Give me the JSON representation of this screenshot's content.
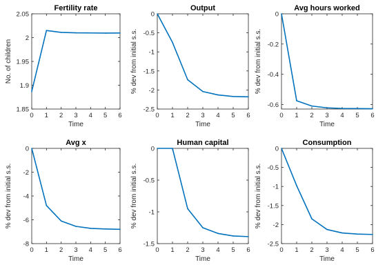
{
  "chart_data": [
    {
      "type": "line",
      "title": "Fertility rate",
      "xlabel": "Time",
      "ylabel": "No. of children",
      "x": [
        0,
        1,
        2,
        3,
        4,
        5,
        6
      ],
      "xlim": [
        0,
        6
      ],
      "ylim": [
        1.85,
        2.05
      ],
      "xticks": [
        0,
        1,
        2,
        3,
        4,
        5,
        6
      ],
      "yticks": [
        1.85,
        1.9,
        1.95,
        2,
        2.05
      ],
      "ytick_labels": [
        "1.85",
        "1.9",
        "1.95",
        "2",
        "2.05"
      ],
      "series": [
        {
          "values": [
            1.887,
            2.015,
            2.011,
            2.01,
            2.0098,
            2.0095,
            2.0097
          ],
          "color": "#0072BD"
        }
      ],
      "grid": false
    },
    {
      "type": "line",
      "title": "Output",
      "xlabel": "Time",
      "ylabel": "% dev from initial s.s.",
      "x": [
        0,
        1,
        2,
        3,
        4,
        5,
        6
      ],
      "xlim": [
        0,
        6
      ],
      "ylim": [
        -2.5,
        0
      ],
      "xticks": [
        0,
        1,
        2,
        3,
        4,
        5,
        6
      ],
      "yticks": [
        -2.5,
        -2,
        -1.5,
        -1,
        -0.5,
        0
      ],
      "ytick_labels": [
        "-2.5",
        "-2",
        "-1.5",
        "-1",
        "-0.5",
        "0"
      ],
      "series": [
        {
          "values": [
            0,
            -0.75,
            -1.73,
            -2.04,
            -2.13,
            -2.17,
            -2.18
          ],
          "color": "#0072BD"
        }
      ],
      "grid": false
    },
    {
      "type": "line",
      "title": "Avg hours worked",
      "xlabel": "Time",
      "ylabel": "% dev from initial s.s.",
      "x": [
        0,
        1,
        2,
        3,
        4,
        5,
        6
      ],
      "xlim": [
        0,
        6
      ],
      "ylim": [
        -0.63,
        0
      ],
      "xticks": [
        0,
        1,
        2,
        3,
        4,
        5,
        6
      ],
      "yticks": [
        -0.6,
        -0.4,
        -0.2,
        0
      ],
      "ytick_labels": [
        "-0.6",
        "-0.4",
        "-0.2",
        "0"
      ],
      "series": [
        {
          "values": [
            0,
            -0.575,
            -0.61,
            -0.622,
            -0.626,
            -0.627,
            -0.628
          ],
          "color": "#0072BD"
        }
      ],
      "grid": false
    },
    {
      "type": "line",
      "title": "Avg x",
      "xlabel": "Time",
      "ylabel": "% dev from initial s.s.",
      "x": [
        0,
        1,
        2,
        3,
        4,
        5,
        6
      ],
      "xlim": [
        0,
        6
      ],
      "ylim": [
        -8,
        0
      ],
      "xticks": [
        0,
        1,
        2,
        3,
        4,
        5,
        6
      ],
      "yticks": [
        -8,
        -6,
        -4,
        -2,
        0
      ],
      "ytick_labels": [
        "-8",
        "-6",
        "-4",
        "-2",
        "0"
      ],
      "series": [
        {
          "values": [
            0,
            -4.8,
            -6.1,
            -6.55,
            -6.72,
            -6.77,
            -6.8
          ],
          "color": "#0072BD"
        }
      ],
      "grid": false
    },
    {
      "type": "line",
      "title": "Human capital",
      "xlabel": "Time",
      "ylabel": "% dev from initial s.s.",
      "x": [
        0,
        1,
        2,
        3,
        4,
        5,
        6
      ],
      "xlim": [
        0,
        6
      ],
      "ylim": [
        -1.5,
        0
      ],
      "xticks": [
        0,
        1,
        2,
        3,
        4,
        5,
        6
      ],
      "yticks": [
        -1.5,
        -1,
        -0.5,
        0
      ],
      "ytick_labels": [
        "-1.5",
        "-1",
        "-0.5",
        "0"
      ],
      "series": [
        {
          "values": [
            0,
            0,
            -0.95,
            -1.25,
            -1.34,
            -1.38,
            -1.39
          ],
          "color": "#0072BD"
        }
      ],
      "grid": false
    },
    {
      "type": "line",
      "title": "Consumption",
      "xlabel": "Time",
      "ylabel": "% dev from initial s.s.",
      "x": [
        0,
        1,
        2,
        3,
        4,
        5,
        6
      ],
      "xlim": [
        0,
        6
      ],
      "ylim": [
        -2.5,
        0
      ],
      "xticks": [
        0,
        1,
        2,
        3,
        4,
        5,
        6
      ],
      "yticks": [
        -2.5,
        -2,
        -1.5,
        -1,
        -0.5,
        0
      ],
      "ytick_labels": [
        "-2.5",
        "-2",
        "-1.5",
        "-1",
        "-0.5",
        "0"
      ],
      "series": [
        {
          "values": [
            0,
            -0.98,
            -1.85,
            -2.13,
            -2.22,
            -2.25,
            -2.26
          ],
          "color": "#0072BD"
        }
      ],
      "grid": false
    }
  ]
}
